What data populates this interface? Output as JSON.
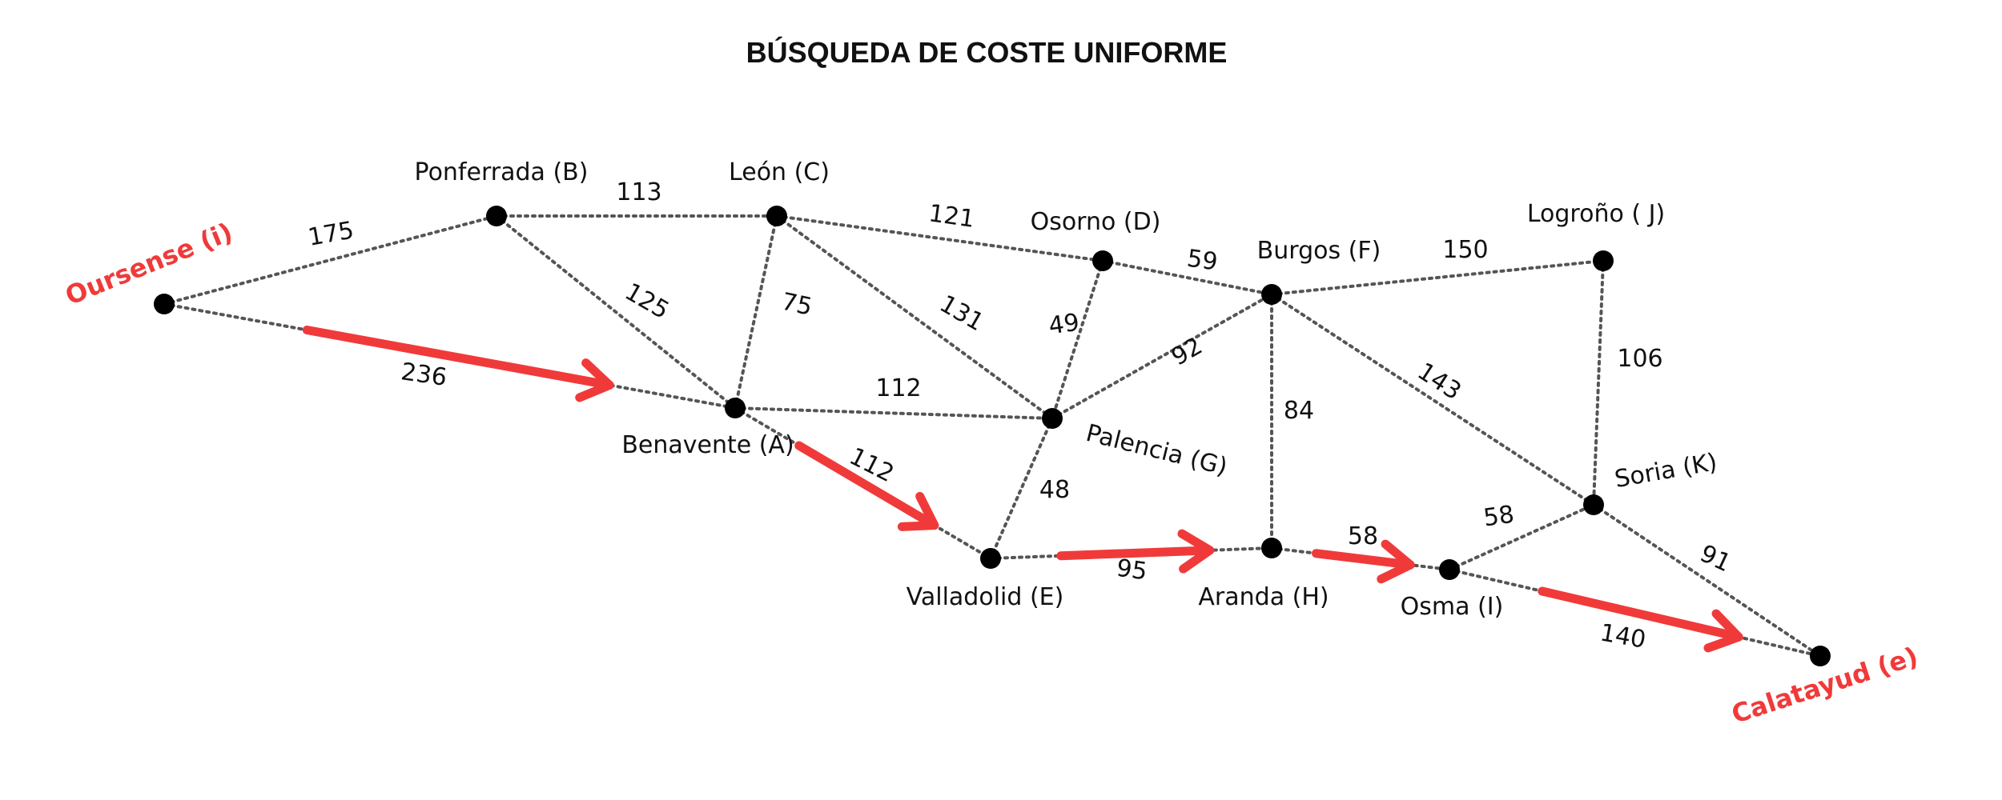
{
  "title": "BÚSQUEDA DE COSTE UNIFORME",
  "colors": {
    "highlight": "#f03a3a",
    "node": "#000000",
    "edge": "#555555"
  },
  "nodes": [
    {
      "id": "i",
      "label": "Oursense (i)",
      "endpoint": true
    },
    {
      "id": "B",
      "label": "Ponferrada (B)"
    },
    {
      "id": "C",
      "label": "León (C)"
    },
    {
      "id": "D",
      "label": "Osorno (D)"
    },
    {
      "id": "F",
      "label": "Burgos (F)"
    },
    {
      "id": "J",
      "label": "Logroño ( J)"
    },
    {
      "id": "A",
      "label": "Benavente (A)"
    },
    {
      "id": "G",
      "label": "Palencia (G)"
    },
    {
      "id": "E",
      "label": "Valladolid (E)"
    },
    {
      "id": "H",
      "label": "Aranda (H)"
    },
    {
      "id": "I",
      "label": "Osma (I)"
    },
    {
      "id": "K",
      "label": "Soria (K)"
    },
    {
      "id": "e",
      "label": "Calatayud (e)",
      "endpoint": true
    }
  ],
  "edges": [
    {
      "from": "i",
      "to": "B",
      "weight": "175"
    },
    {
      "from": "i",
      "to": "A",
      "weight": "236"
    },
    {
      "from": "B",
      "to": "C",
      "weight": "113"
    },
    {
      "from": "B",
      "to": "A",
      "weight": "125"
    },
    {
      "from": "C",
      "to": "A",
      "weight": "75"
    },
    {
      "from": "C",
      "to": "D",
      "weight": "121"
    },
    {
      "from": "C",
      "to": "G",
      "weight": "131"
    },
    {
      "from": "D",
      "to": "F",
      "weight": "59"
    },
    {
      "from": "D",
      "to": "G",
      "weight": "49"
    },
    {
      "from": "A",
      "to": "G",
      "weight": "112"
    },
    {
      "from": "A",
      "to": "E",
      "weight": "112"
    },
    {
      "from": "G",
      "to": "F",
      "weight": "92"
    },
    {
      "from": "G",
      "to": "E",
      "weight": "48"
    },
    {
      "from": "F",
      "to": "J",
      "weight": "150"
    },
    {
      "from": "F",
      "to": "H",
      "weight": "84"
    },
    {
      "from": "F",
      "to": "K",
      "weight": "143"
    },
    {
      "from": "J",
      "to": "K",
      "weight": "106"
    },
    {
      "from": "E",
      "to": "H",
      "weight": "95"
    },
    {
      "from": "H",
      "to": "I",
      "weight": "58"
    },
    {
      "from": "I",
      "to": "K",
      "weight": "58"
    },
    {
      "from": "I",
      "to": "e",
      "weight": "140"
    },
    {
      "from": "K",
      "to": "e",
      "weight": "91"
    }
  ],
  "path": [
    "i",
    "A",
    "E",
    "H",
    "I",
    "e"
  ]
}
